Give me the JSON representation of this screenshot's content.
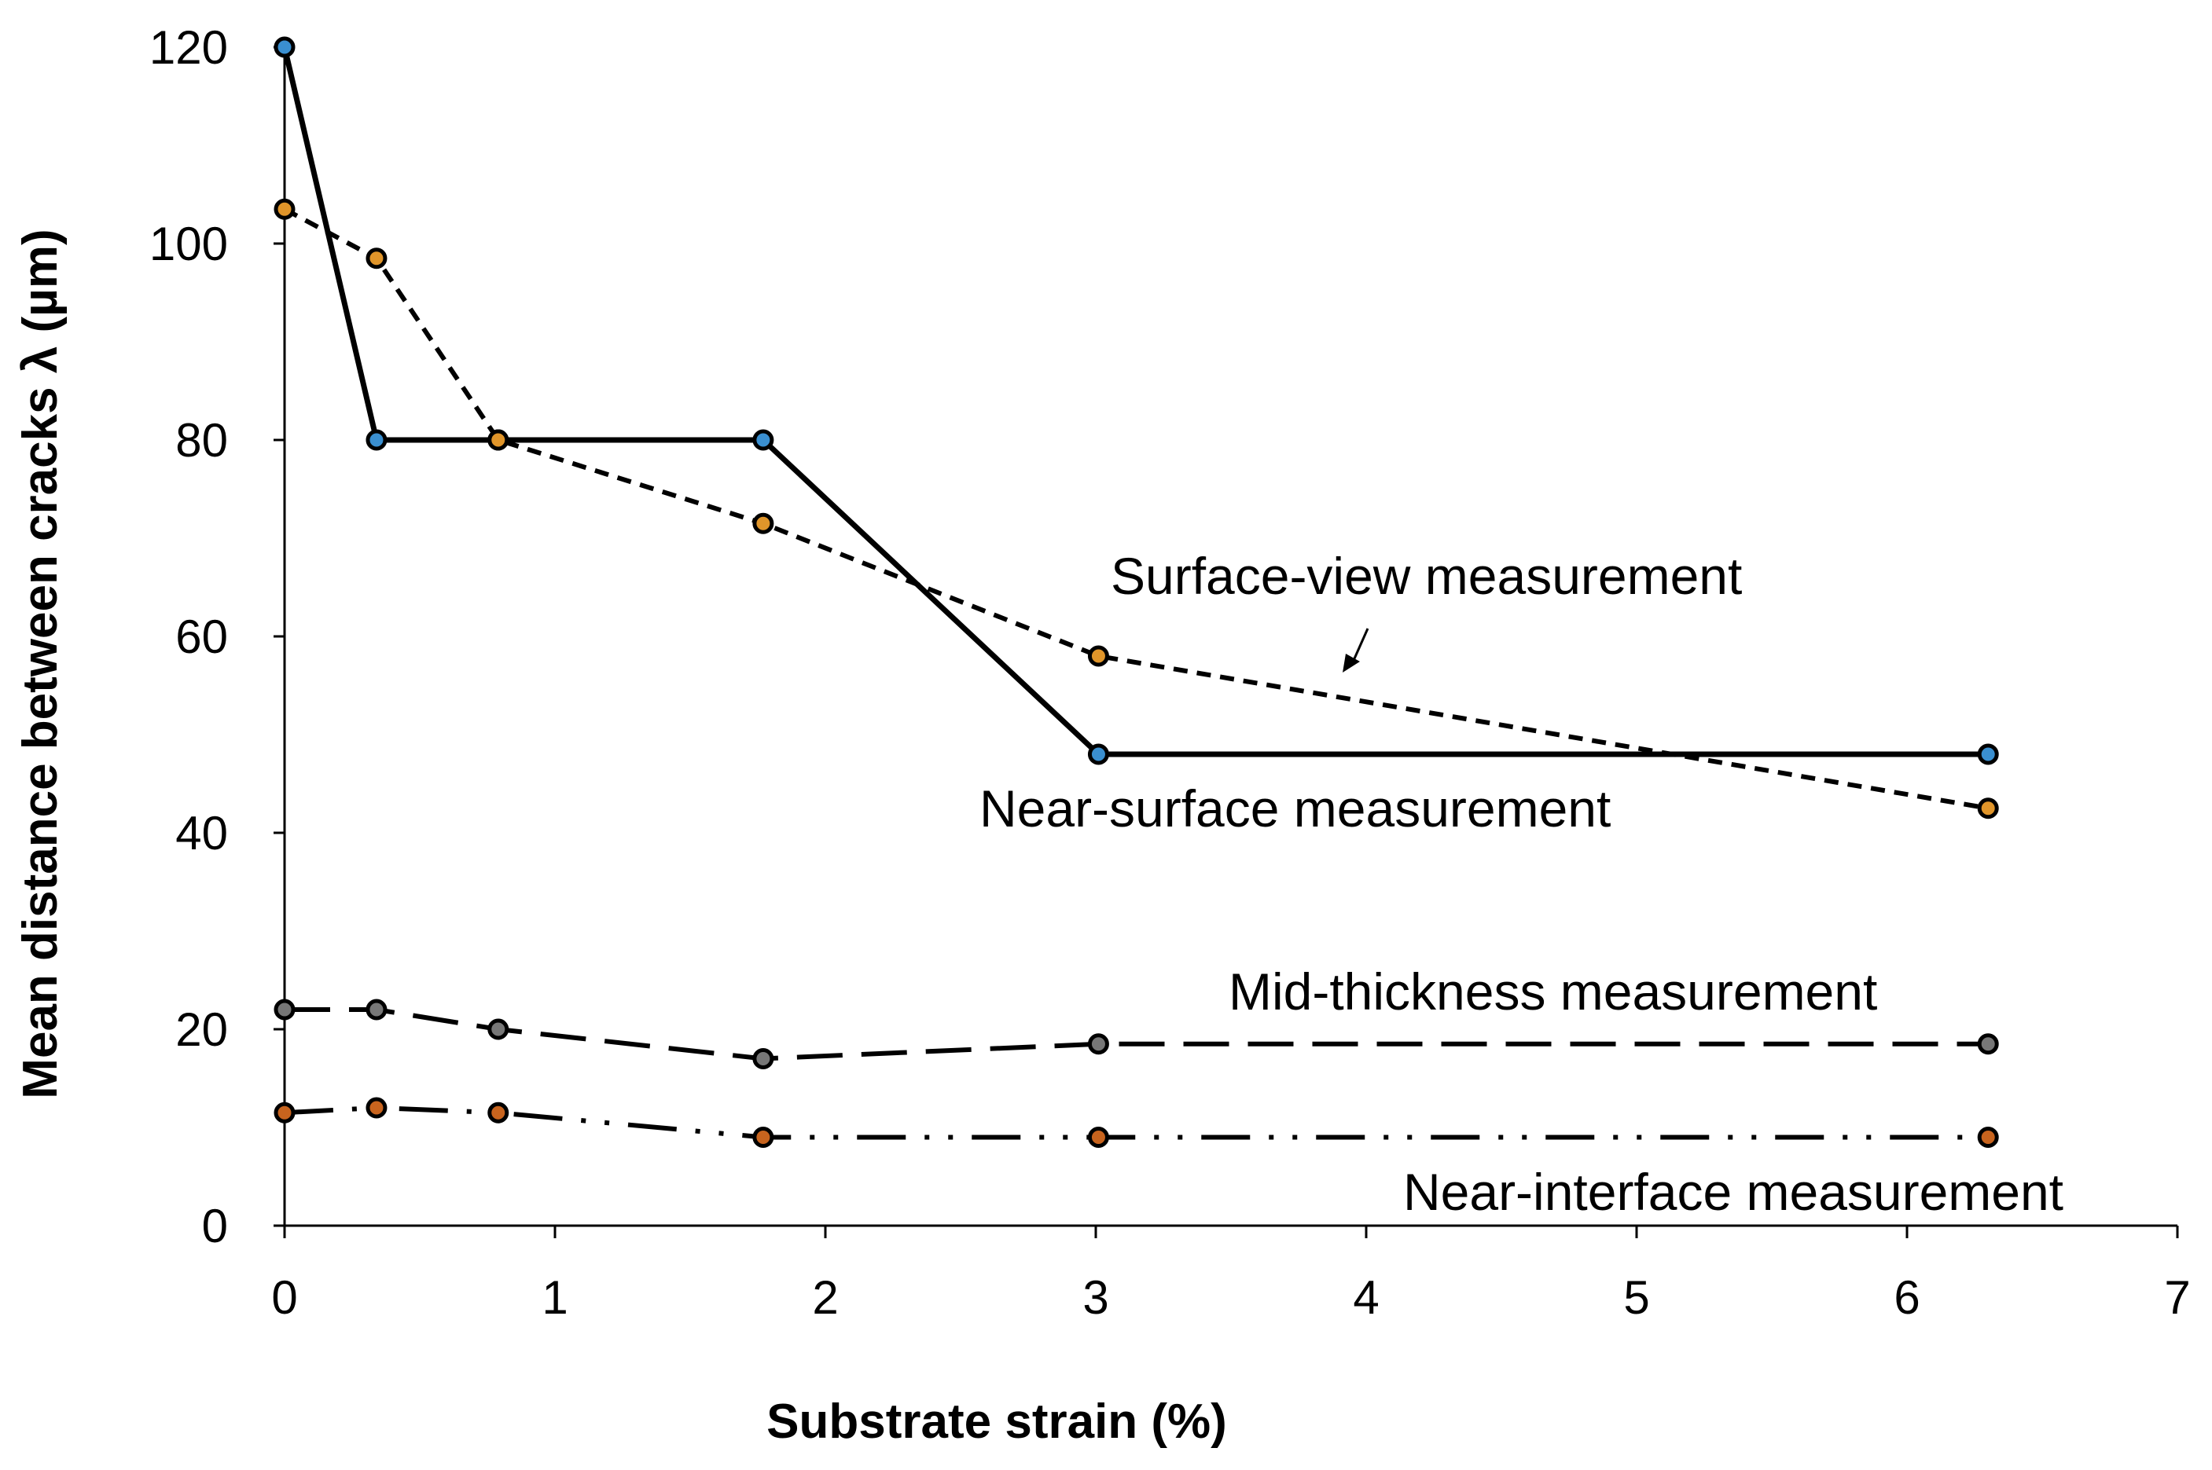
{
  "chart_data": {
    "type": "line",
    "title": "",
    "xlabel": "Substrate strain (%)",
    "ylabel": "Mean distance between cracks λ (µm)",
    "xlim": [
      0,
      7
    ],
    "ylim": [
      0,
      120
    ],
    "xticks": [
      "0",
      "1",
      "2",
      "3",
      "4",
      "5",
      "6",
      "7"
    ],
    "yticks": [
      "0",
      "20",
      "40",
      "60",
      "80",
      "100",
      "120"
    ],
    "grid": false,
    "series": [
      {
        "name": "Near-surface measurement",
        "style": "solid",
        "marker_color": "#3a8fd0",
        "x": [
          0,
          0.34,
          0.79,
          1.77,
          3.01,
          6.3
        ],
        "y": [
          120,
          80,
          80,
          80,
          48,
          48
        ]
      },
      {
        "name": "Surface-view measurement",
        "style": "short-dash",
        "marker_color": "#e0952a",
        "x": [
          0,
          0.34,
          0.79,
          1.77,
          3.01,
          6.3
        ],
        "y": [
          103.5,
          98.5,
          80,
          71.5,
          58,
          42.5
        ]
      },
      {
        "name": "Mid-thickness measurement",
        "style": "long-dash",
        "marker_color": "#777777",
        "x": [
          0,
          0.34,
          0.79,
          1.77,
          3.01,
          6.3
        ],
        "y": [
          22,
          22,
          20,
          17,
          18.5,
          18.5
        ]
      },
      {
        "name": "Near-interface measurement",
        "style": "dash-dot-dot",
        "marker_color": "#c8641e",
        "x": [
          0,
          0.34,
          0.79,
          1.77,
          3.01,
          6.3
        ],
        "y": [
          11.5,
          12,
          11.5,
          9,
          9,
          9
        ]
      }
    ],
    "annotations": [
      {
        "text": "Surface-view measurement",
        "series": "Surface-view measurement",
        "arrow": true
      },
      {
        "text": "Near-surface measurement",
        "series": "Near-surface measurement",
        "arrow": false
      },
      {
        "text": "Mid-thickness measurement",
        "series": "Mid-thickness measurement",
        "arrow": false
      },
      {
        "text": "Near-interface measurement",
        "series": "Near-interface measurement",
        "arrow": false
      }
    ]
  }
}
